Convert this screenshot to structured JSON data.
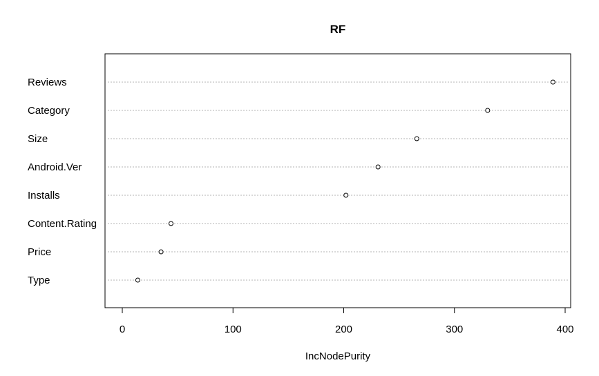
{
  "chart_data": {
    "type": "scatter",
    "title": "RF",
    "xlabel": "IncNodePurity",
    "ylabel": "",
    "categories": [
      "Reviews",
      "Category",
      "Size",
      "Android.Ver",
      "Installs",
      "Content.Rating",
      "Price",
      "Type"
    ],
    "values": [
      389,
      330,
      266,
      231,
      202,
      44,
      35,
      14
    ],
    "xlim": [
      0,
      400
    ],
    "xticks": [
      0,
      100,
      200,
      300,
      400
    ],
    "grid": "horizontal dotted",
    "legend": "none"
  }
}
